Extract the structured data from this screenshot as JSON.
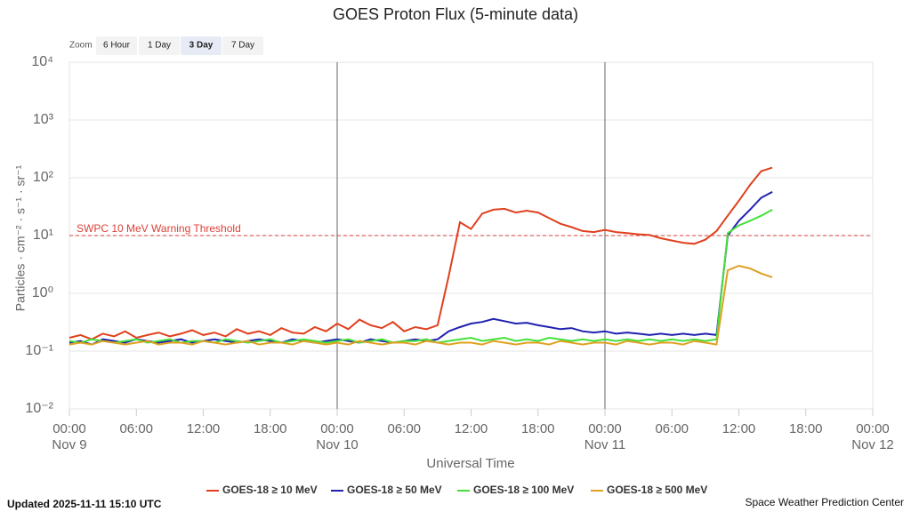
{
  "chart_data": {
    "type": "line",
    "title": "GOES Proton Flux (5-minute data)",
    "xlabel": "Universal Time",
    "ylabel": "Particles · cm⁻² · s⁻¹ · sr⁻¹",
    "log_y": true,
    "grid": true,
    "xlim": [
      0,
      72
    ],
    "xticks": [
      {
        "value": 0,
        "label": "00:00"
      },
      {
        "value": 6,
        "label": "06:00"
      },
      {
        "value": 12,
        "label": "12:00"
      },
      {
        "value": 18,
        "label": "18:00"
      },
      {
        "value": 24,
        "label": "00:00"
      },
      {
        "value": 30,
        "label": "06:00"
      },
      {
        "value": 36,
        "label": "12:00"
      },
      {
        "value": 42,
        "label": "18:00"
      },
      {
        "value": 48,
        "label": "00:00"
      },
      {
        "value": 54,
        "label": "06:00"
      },
      {
        "value": 60,
        "label": "12:00"
      },
      {
        "value": 66,
        "label": "18:00"
      },
      {
        "value": 72,
        "label": "00:00"
      }
    ],
    "xtick_dates": [
      {
        "value": 0,
        "label": "Nov 9"
      },
      {
        "value": 24,
        "label": "Nov 10"
      },
      {
        "value": 48,
        "label": "Nov 11"
      },
      {
        "value": 72,
        "label": "Nov 12"
      }
    ],
    "ylim": [
      0.01,
      10000
    ],
    "yticks": [
      {
        "value": 0.01,
        "label": "10⁻²"
      },
      {
        "value": 0.1,
        "label": "10⁻¹"
      },
      {
        "value": 1,
        "label": "10⁰"
      },
      {
        "value": 10,
        "label": "10¹"
      },
      {
        "value": 100,
        "label": "10²"
      },
      {
        "value": 1000,
        "label": "10³"
      },
      {
        "value": 10000,
        "label": "10⁴"
      }
    ],
    "threshold": {
      "value": 10,
      "label": "SWPC 10 MeV Warning Threshold",
      "color": "#d9413a"
    },
    "x": [
      0,
      1,
      2,
      3,
      4,
      5,
      6,
      7,
      8,
      9,
      10,
      11,
      12,
      13,
      14,
      15,
      16,
      17,
      18,
      19,
      20,
      21,
      22,
      23,
      24,
      25,
      26,
      27,
      28,
      29,
      30,
      31,
      32,
      33,
      34,
      35,
      36,
      37,
      38,
      39,
      40,
      41,
      42,
      43,
      44,
      45,
      46,
      47,
      48,
      49,
      50,
      51,
      52,
      53,
      54,
      55,
      56,
      57,
      58,
      59,
      60,
      61,
      62,
      63
    ],
    "series": [
      {
        "name": "GOES-18 ≥ 10 MeV",
        "color": "#e0401e",
        "values": [
          0.17,
          0.19,
          0.16,
          0.2,
          0.18,
          0.22,
          0.17,
          0.19,
          0.21,
          0.18,
          0.2,
          0.23,
          0.19,
          0.21,
          0.18,
          0.24,
          0.2,
          0.22,
          0.19,
          0.25,
          0.21,
          0.2,
          0.26,
          0.22,
          0.3,
          0.24,
          0.35,
          0.28,
          0.25,
          0.32,
          0.22,
          0.26,
          0.24,
          0.28,
          2,
          17,
          13,
          24,
          28,
          29,
          25,
          27,
          25,
          20,
          16,
          14,
          12,
          11.5,
          12.5,
          11.5,
          11,
          10.5,
          10.2,
          9,
          8.2,
          7.5,
          7.2,
          8.5,
          12,
          22,
          40,
          75,
          130,
          150
        ]
      },
      {
        "name": "GOES-18 ≥ 50 MeV",
        "color": "#2020b0",
        "values": [
          0.14,
          0.15,
          0.13,
          0.16,
          0.15,
          0.14,
          0.16,
          0.15,
          0.14,
          0.15,
          0.16,
          0.14,
          0.15,
          0.16,
          0.15,
          0.14,
          0.15,
          0.16,
          0.15,
          0.14,
          0.16,
          0.15,
          0.14,
          0.15,
          0.16,
          0.15,
          0.14,
          0.16,
          0.15,
          0.14,
          0.15,
          0.16,
          0.15,
          0.16,
          0.22,
          0.26,
          0.3,
          0.32,
          0.36,
          0.33,
          0.3,
          0.31,
          0.28,
          0.26,
          0.24,
          0.25,
          0.22,
          0.21,
          0.22,
          0.2,
          0.21,
          0.2,
          0.19,
          0.2,
          0.19,
          0.2,
          0.19,
          0.2,
          0.19,
          10,
          18,
          28,
          45,
          57
        ]
      },
      {
        "name": "GOES-18 ≥ 100 MeV",
        "color": "#44e03c",
        "values": [
          0.15,
          0.14,
          0.16,
          0.15,
          0.14,
          0.15,
          0.16,
          0.14,
          0.15,
          0.16,
          0.14,
          0.15,
          0.15,
          0.14,
          0.16,
          0.15,
          0.14,
          0.15,
          0.16,
          0.14,
          0.15,
          0.16,
          0.15,
          0.14,
          0.15,
          0.16,
          0.14,
          0.15,
          0.16,
          0.14,
          0.15,
          0.15,
          0.16,
          0.14,
          0.15,
          0.16,
          0.17,
          0.15,
          0.16,
          0.17,
          0.15,
          0.16,
          0.15,
          0.17,
          0.16,
          0.15,
          0.16,
          0.15,
          0.16,
          0.15,
          0.16,
          0.15,
          0.16,
          0.15,
          0.16,
          0.15,
          0.16,
          0.15,
          0.16,
          11,
          15,
          18,
          22,
          28
        ]
      },
      {
        "name": "GOES-18 ≥ 500 MeV",
        "color": "#e0a020",
        "values": [
          0.13,
          0.14,
          0.13,
          0.15,
          0.14,
          0.13,
          0.14,
          0.15,
          0.13,
          0.14,
          0.14,
          0.13,
          0.15,
          0.14,
          0.13,
          0.14,
          0.15,
          0.13,
          0.14,
          0.14,
          0.13,
          0.15,
          0.14,
          0.13,
          0.14,
          0.13,
          0.15,
          0.14,
          0.13,
          0.14,
          0.14,
          0.13,
          0.15,
          0.14,
          0.13,
          0.14,
          0.14,
          0.13,
          0.15,
          0.14,
          0.13,
          0.14,
          0.14,
          0.13,
          0.15,
          0.14,
          0.13,
          0.14,
          0.14,
          0.13,
          0.15,
          0.14,
          0.13,
          0.14,
          0.14,
          0.13,
          0.15,
          0.14,
          0.13,
          2.5,
          3,
          2.7,
          2.2,
          1.9
        ]
      }
    ]
  },
  "zoom": {
    "label": "Zoom",
    "buttons": [
      "6 Hour",
      "1 Day",
      "3 Day",
      "7 Day"
    ]
  },
  "footer": {
    "updated": "Updated 2025-11-11 15:10 UTC",
    "credit": "Space Weather Prediction Center"
  }
}
